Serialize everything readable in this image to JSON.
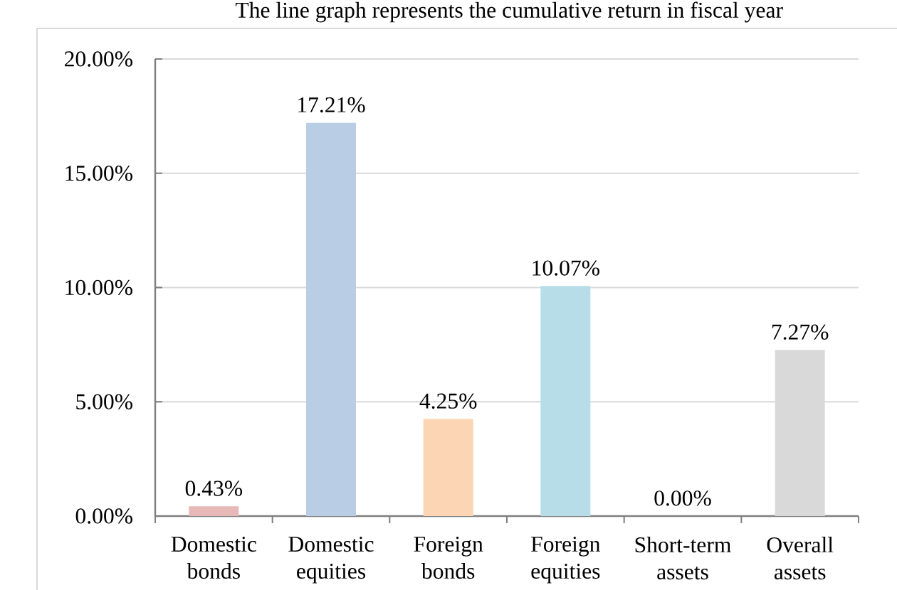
{
  "chart_data": {
    "type": "bar",
    "annotations": [
      "The line graph represents the cumulative return in fiscal year"
    ],
    "categories": [
      "Domestic bonds",
      "Domestic equities",
      "Foreign bonds",
      "Foreign equities",
      "Short-term assets",
      "Overall assets"
    ],
    "values": [
      0.43,
      17.21,
      4.25,
      10.07,
      0.0,
      7.27
    ],
    "colors": [
      "#e6b9b8",
      "#b9cde5",
      "#fcd5b5",
      "#b7dee8",
      "#d7e4bd",
      "#d9d9d9"
    ],
    "value_labels": [
      "0.43%",
      "17.21%",
      "4.25%",
      "10.07%",
      "0.00%",
      "7.27%"
    ],
    "ylim": [
      0,
      20
    ],
    "yticks": [
      {
        "value": 0,
        "label": "0.00%"
      },
      {
        "value": 5,
        "label": "5.00%"
      },
      {
        "value": 10,
        "label": "10.00%"
      },
      {
        "value": 15,
        "label": "15.00%"
      },
      {
        "value": 20,
        "label": "20.00%"
      }
    ],
    "grid": "y"
  }
}
